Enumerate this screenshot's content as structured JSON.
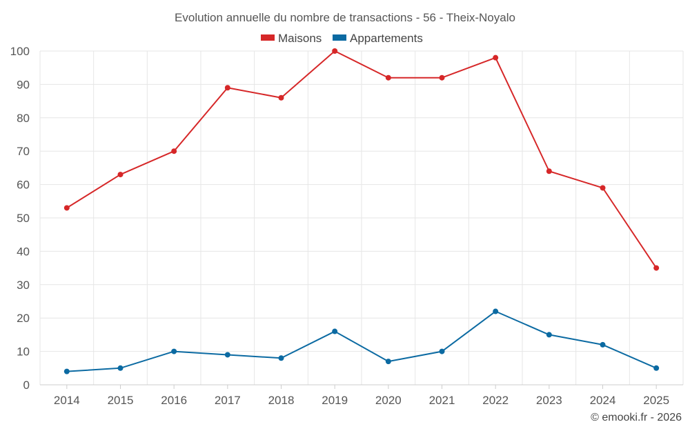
{
  "chart_data": {
    "type": "line",
    "title": "Evolution annuelle du nombre de transactions - 56 - Theix-Noyalo",
    "xlabel": "",
    "ylabel": "",
    "categories": [
      "2014",
      "2015",
      "2016",
      "2017",
      "2018",
      "2019",
      "2020",
      "2021",
      "2022",
      "2023",
      "2024",
      "2025"
    ],
    "ylim": [
      0,
      100
    ],
    "yticks": [
      0,
      10,
      20,
      30,
      40,
      50,
      60,
      70,
      80,
      90,
      100
    ],
    "grid": true,
    "legend_position": "top-center",
    "series": [
      {
        "name": "Maisons",
        "color": "#d62728",
        "values": [
          53,
          63,
          70,
          89,
          86,
          100,
          92,
          92,
          98,
          64,
          59,
          35
        ]
      },
      {
        "name": "Appartements",
        "color": "#0b6aa2",
        "values": [
          4,
          5,
          10,
          9,
          8,
          16,
          7,
          10,
          22,
          15,
          12,
          5
        ]
      }
    ]
  },
  "credit": "© emooki.fr - 2026"
}
